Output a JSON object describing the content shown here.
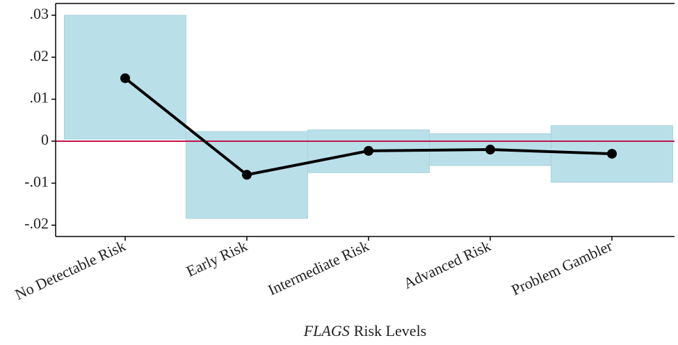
{
  "chart_data": {
    "type": "line",
    "categories": [
      "No Detectable Risk",
      "Early Risk",
      "Intermediate Risk",
      "Advanced Risk",
      "Problem Gambler"
    ],
    "series": [
      {
        "color": "#000000",
        "ci_color": "#b9dfe8",
        "values": [
          0.015,
          -0.008,
          -0.0023,
          -0.002,
          -0.003
        ],
        "lower": [
          0.0005,
          -0.0184,
          -0.0075,
          -0.0058,
          -0.0098
        ],
        "upper": [
          0.03,
          0.0023,
          0.0027,
          0.0018,
          0.0037
        ]
      }
    ],
    "ylim": [
      -0.0227,
      0.0328
    ],
    "yticks": [
      {
        "value": 0.03,
        "label": ".03"
      },
      {
        "value": 0.02,
        "label": ".02"
      },
      {
        "value": 0.01,
        "label": ".01"
      },
      0,
      {
        "value": -0.01,
        "label": "-.01"
      },
      {
        "value": -0.02,
        "label": "-.02"
      }
    ],
    "reference_line": {
      "value": 0,
      "color": "#c0144a"
    },
    "x_label": [
      "FLAGS",
      "Risk Levels"
    ]
  }
}
